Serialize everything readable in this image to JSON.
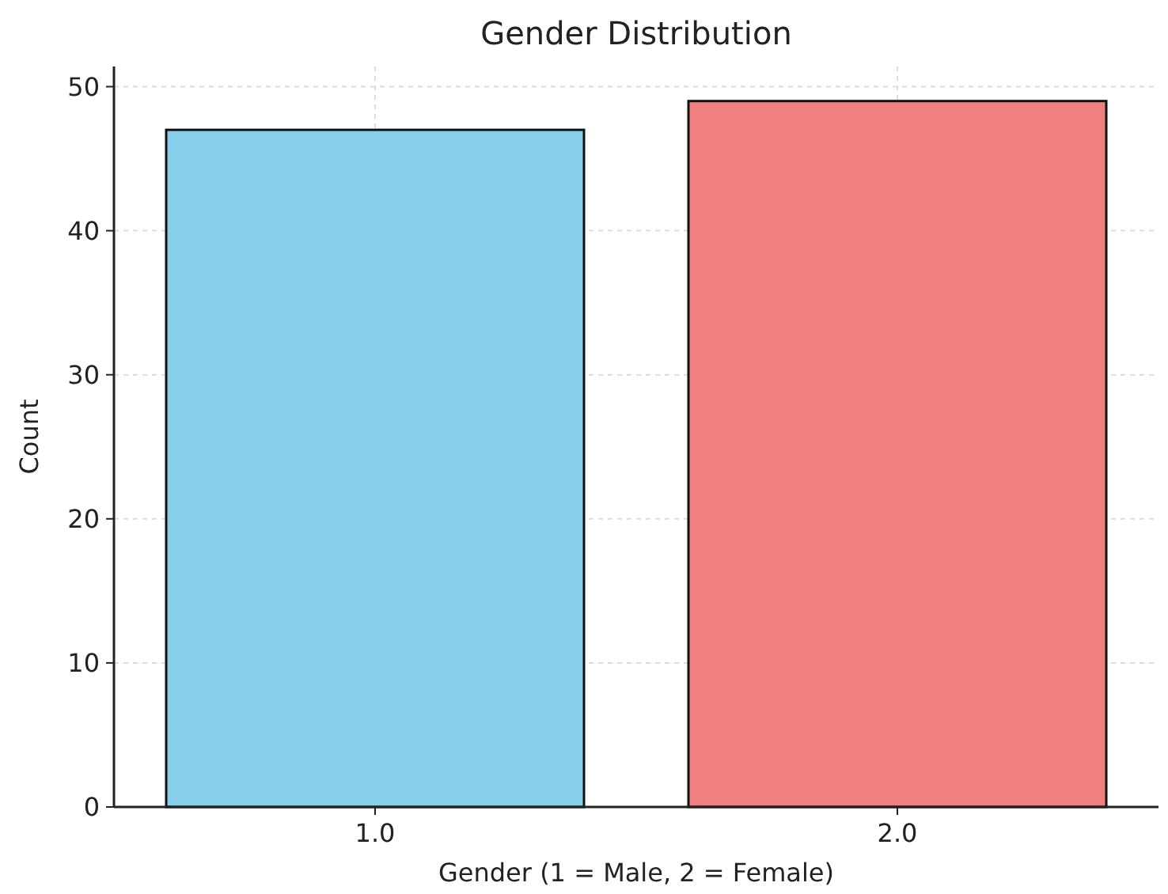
{
  "chart_data": {
    "type": "bar",
    "title": "Gender Distribution",
    "xlabel": "Gender (1 = Male, 2 = Female)",
    "ylabel": "Count",
    "categories": [
      "1.0",
      "2.0"
    ],
    "values": [
      47,
      49
    ],
    "colors": [
      "#87ceeb",
      "#f08080"
    ],
    "ylim": [
      0,
      51.4
    ],
    "yticks": [
      0,
      10,
      20,
      30,
      40,
      50
    ],
    "grid": true
  }
}
